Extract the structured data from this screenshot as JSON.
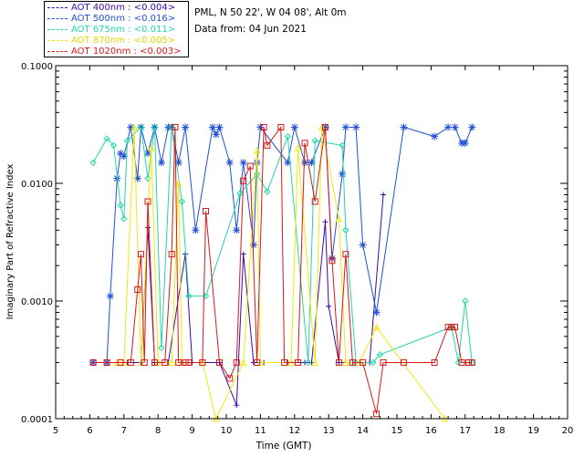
{
  "station_info": {
    "location": "PML, N 50 22', W 04 08', Alt 0m",
    "date_line": "Data from: 04 Jun 2021"
  },
  "legend": [
    {
      "label": "AOT  400nm : <0.004>",
      "color": "#3b0aa8"
    },
    {
      "label": "AOT  500nm : <0.016>",
      "color": "#1e4fd6"
    },
    {
      "label": "AOT  675nm : <0.011>",
      "color": "#23d7a6"
    },
    {
      "label": "AOT  870nm : <0.005>",
      "color": "#f0e810"
    },
    {
      "label": "AOT 1020nm : <0.003>",
      "color": "#d81818"
    }
  ],
  "chart_data": {
    "type": "line",
    "title": "",
    "xlabel": "Time (GMT)",
    "ylabel": "Imaginary Part of Refractive Index",
    "xlim": [
      5,
      20
    ],
    "ylim": [
      0.0001,
      0.1
    ],
    "yscale": "log",
    "x_ticks": [
      5,
      6,
      7,
      8,
      9,
      10,
      11,
      12,
      13,
      14,
      15,
      16,
      17,
      18,
      19,
      20
    ],
    "y_ticks": [
      0.0001,
      0.001,
      0.01,
      0.1
    ],
    "y_tick_labels": [
      "0.0001",
      "0.0010",
      "0.0100",
      "0.1000"
    ],
    "series": [
      {
        "name": "AOT 400nm",
        "color": "#3b0aa8",
        "marker": "plus",
        "points": [
          [
            6.1,
            0.0003
          ],
          [
            6.5,
            0.0003
          ],
          [
            7.1,
            0.0003
          ],
          [
            7.5,
            0.0003
          ],
          [
            7.7,
            0.0042
          ],
          [
            7.9,
            0.0003
          ],
          [
            8.3,
            0.0003
          ],
          [
            8.8,
            0.0025
          ],
          [
            9.0,
            0.0003
          ],
          [
            9.8,
            0.0003
          ],
          [
            10.3,
            0.00013
          ],
          [
            10.5,
            0.0025
          ],
          [
            10.8,
            0.0003
          ],
          [
            11.1,
            0.0003
          ],
          [
            11.8,
            0.0003
          ],
          [
            12.3,
            0.0003
          ],
          [
            12.5,
            0.0003
          ],
          [
            12.9,
            0.0047
          ],
          [
            13.0,
            0.0009
          ],
          [
            13.3,
            0.0003
          ],
          [
            13.7,
            0.0003
          ],
          [
            14.2,
            0.0003
          ],
          [
            14.6,
            0.008
          ]
        ]
      },
      {
        "name": "AOT 500nm",
        "color": "#1e4fd6",
        "marker": "asterisk",
        "points": [
          [
            6.1,
            0.0003
          ],
          [
            6.5,
            0.0003
          ],
          [
            6.6,
            0.0011
          ],
          [
            6.8,
            0.011
          ],
          [
            6.9,
            0.018
          ],
          [
            7.0,
            0.017
          ],
          [
            7.2,
            0.03
          ],
          [
            7.4,
            0.011
          ],
          [
            7.5,
            0.03
          ],
          [
            7.7,
            0.018
          ],
          [
            7.9,
            0.03
          ],
          [
            8.1,
            0.015
          ],
          [
            8.3,
            0.03
          ],
          [
            8.4,
            0.03
          ],
          [
            8.6,
            0.015
          ],
          [
            8.8,
            0.03
          ],
          [
            9.1,
            0.004
          ],
          [
            9.6,
            0.03
          ],
          [
            9.7,
            0.026
          ],
          [
            9.8,
            0.03
          ],
          [
            10.1,
            0.015
          ],
          [
            10.3,
            0.004
          ],
          [
            10.5,
            0.015
          ],
          [
            10.8,
            0.003
          ],
          [
            10.9,
            0.015
          ],
          [
            11.0,
            0.03
          ],
          [
            11.8,
            0.015
          ],
          [
            12.0,
            0.03
          ],
          [
            12.3,
            0.015
          ],
          [
            12.5,
            0.015
          ],
          [
            12.9,
            0.03
          ],
          [
            13.1,
            0.0023
          ],
          [
            13.4,
            0.012
          ],
          [
            13.5,
            0.03
          ],
          [
            13.8,
            0.03
          ],
          [
            14.0,
            0.003
          ],
          [
            14.4,
            0.0008
          ],
          [
            15.2,
            0.03
          ],
          [
            16.1,
            0.025
          ],
          [
            16.5,
            0.03
          ],
          [
            16.7,
            0.03
          ],
          [
            16.9,
            0.022
          ],
          [
            17.0,
            0.022
          ],
          [
            17.2,
            0.03
          ]
        ]
      },
      {
        "name": "AOT 675nm",
        "color": "#23d7a6",
        "marker": "diamond",
        "points": [
          [
            6.1,
            0.015
          ],
          [
            6.5,
            0.024
          ],
          [
            6.7,
            0.021
          ],
          [
            6.9,
            0.0065
          ],
          [
            7.0,
            0.005
          ],
          [
            7.1,
            0.023
          ],
          [
            7.5,
            0.03
          ],
          [
            7.7,
            0.011
          ],
          [
            7.9,
            0.03
          ],
          [
            8.1,
            0.0004
          ],
          [
            8.4,
            0.03
          ],
          [
            8.7,
            0.007
          ],
          [
            8.9,
            0.0011
          ],
          [
            9.4,
            0.0011
          ],
          [
            10.4,
            0.0082
          ],
          [
            10.9,
            0.012
          ],
          [
            11.2,
            0.0085
          ],
          [
            11.8,
            0.025
          ],
          [
            12.4,
            0.0003
          ],
          [
            12.6,
            0.023
          ],
          [
            13.4,
            0.021
          ],
          [
            13.5,
            0.004
          ],
          [
            13.8,
            0.0003
          ],
          [
            14.3,
            0.0003
          ],
          [
            14.5,
            0.00035
          ],
          [
            16.6,
            0.0006
          ],
          [
            16.8,
            0.0003
          ],
          [
            17.0,
            0.001
          ],
          [
            17.2,
            0.0003
          ]
        ]
      },
      {
        "name": "AOT 870nm",
        "color": "#f0e810",
        "marker": "triangle",
        "points": [
          [
            6.8,
            0.0003
          ],
          [
            7.0,
            0.0003
          ],
          [
            7.3,
            0.03
          ],
          [
            7.5,
            0.0003
          ],
          [
            7.8,
            0.02
          ],
          [
            8.0,
            0.0003
          ],
          [
            8.4,
            0.0003
          ],
          [
            8.6,
            0.01
          ],
          [
            8.7,
            0.0003
          ],
          [
            9.3,
            0.0003
          ],
          [
            9.7,
            0.0001
          ],
          [
            10.5,
            0.0003
          ],
          [
            10.9,
            0.019
          ],
          [
            11.0,
            0.0003
          ],
          [
            11.9,
            0.0003
          ],
          [
            12.1,
            0.02
          ],
          [
            12.6,
            0.0003
          ],
          [
            12.8,
            0.03
          ],
          [
            13.3,
            0.005
          ],
          [
            13.5,
            0.0003
          ],
          [
            13.9,
            0.0003
          ],
          [
            14.4,
            0.0006
          ],
          [
            16.4,
            0.0001
          ]
        ]
      },
      {
        "name": "AOT 1020nm",
        "color": "#d81818",
        "marker": "square",
        "points": [
          [
            6.1,
            0.0003
          ],
          [
            6.5,
            0.0003
          ],
          [
            6.9,
            0.0003
          ],
          [
            7.2,
            0.0003
          ],
          [
            7.4,
            0.00125
          ],
          [
            7.5,
            0.0025
          ],
          [
            7.6,
            0.0003
          ],
          [
            7.7,
            0.007
          ],
          [
            7.9,
            0.0003
          ],
          [
            8.2,
            0.0003
          ],
          [
            8.4,
            0.0025
          ],
          [
            8.5,
            0.03
          ],
          [
            8.6,
            0.0003
          ],
          [
            8.8,
            0.0003
          ],
          [
            8.9,
            0.0003
          ],
          [
            9.3,
            0.0003
          ],
          [
            9.4,
            0.0058
          ],
          [
            9.8,
            0.0003
          ],
          [
            10.1,
            0.00022
          ],
          [
            10.3,
            0.0003
          ],
          [
            10.5,
            0.0105
          ],
          [
            10.7,
            0.014
          ],
          [
            10.9,
            0.0003
          ],
          [
            11.1,
            0.03
          ],
          [
            11.2,
            0.021
          ],
          [
            11.6,
            0.03
          ],
          [
            11.7,
            0.0003
          ],
          [
            12.1,
            0.0003
          ],
          [
            12.3,
            0.022
          ],
          [
            12.6,
            0.007
          ],
          [
            12.9,
            0.03
          ],
          [
            13.1,
            0.0022
          ],
          [
            13.3,
            0.0003
          ],
          [
            13.5,
            0.0025
          ],
          [
            13.7,
            0.0003
          ],
          [
            14.0,
            0.0003
          ],
          [
            14.4,
            0.00011
          ],
          [
            14.6,
            0.0003
          ],
          [
            15.2,
            0.0003
          ],
          [
            16.1,
            0.0003
          ],
          [
            16.5,
            0.0006
          ],
          [
            16.6,
            0.0006
          ],
          [
            16.7,
            0.0006
          ],
          [
            16.9,
            0.0003
          ],
          [
            17.1,
            0.0003
          ],
          [
            17.2,
            0.0003
          ]
        ]
      }
    ]
  }
}
